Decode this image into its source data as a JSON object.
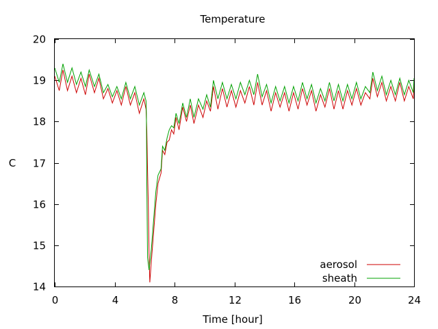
{
  "chart_data": {
    "type": "line",
    "title": "Temperature",
    "xlabel": "Time [hour]",
    "ylabel": "C",
    "xlim": [
      0,
      24
    ],
    "ylim": [
      14,
      20
    ],
    "xticks": [
      0,
      4,
      8,
      12,
      16,
      20,
      24
    ],
    "yticks": [
      14,
      15,
      16,
      17,
      18,
      19,
      20
    ],
    "grid": false,
    "legend_position": "bottom-right",
    "series": [
      {
        "name": "aerosol",
        "color": "#cc0000",
        "points": [
          [
            0.0,
            19.1
          ],
          [
            0.3,
            18.75
          ],
          [
            0.55,
            19.25
          ],
          [
            0.85,
            18.75
          ],
          [
            1.15,
            19.1
          ],
          [
            1.45,
            18.7
          ],
          [
            1.75,
            19.05
          ],
          [
            2.05,
            18.65
          ],
          [
            2.3,
            19.15
          ],
          [
            2.65,
            18.7
          ],
          [
            2.95,
            19.05
          ],
          [
            3.25,
            18.55
          ],
          [
            3.55,
            18.8
          ],
          [
            3.85,
            18.45
          ],
          [
            4.15,
            18.75
          ],
          [
            4.45,
            18.4
          ],
          [
            4.75,
            18.85
          ],
          [
            5.05,
            18.4
          ],
          [
            5.35,
            18.7
          ],
          [
            5.65,
            18.2
          ],
          [
            5.95,
            18.55
          ],
          [
            6.1,
            18.3
          ],
          [
            6.15,
            17.8
          ],
          [
            6.2,
            16.8
          ],
          [
            6.25,
            16.0
          ],
          [
            6.3,
            14.8
          ],
          [
            6.35,
            14.1
          ],
          [
            6.45,
            14.6
          ],
          [
            6.6,
            15.3
          ],
          [
            6.75,
            16.0
          ],
          [
            6.9,
            16.5
          ],
          [
            7.1,
            16.75
          ],
          [
            7.2,
            17.3
          ],
          [
            7.35,
            17.2
          ],
          [
            7.5,
            17.5
          ],
          [
            7.65,
            17.55
          ],
          [
            7.8,
            17.8
          ],
          [
            7.95,
            17.7
          ],
          [
            8.1,
            18.1
          ],
          [
            8.3,
            17.8
          ],
          [
            8.55,
            18.35
          ],
          [
            8.8,
            18.0
          ],
          [
            9.05,
            18.4
          ],
          [
            9.3,
            17.95
          ],
          [
            9.6,
            18.4
          ],
          [
            9.9,
            18.1
          ],
          [
            10.15,
            18.5
          ],
          [
            10.4,
            18.25
          ],
          [
            10.6,
            18.85
          ],
          [
            10.9,
            18.3
          ],
          [
            11.2,
            18.8
          ],
          [
            11.5,
            18.35
          ],
          [
            11.8,
            18.75
          ],
          [
            12.1,
            18.35
          ],
          [
            12.4,
            18.75
          ],
          [
            12.7,
            18.45
          ],
          [
            13.0,
            18.85
          ],
          [
            13.3,
            18.4
          ],
          [
            13.55,
            18.95
          ],
          [
            13.85,
            18.4
          ],
          [
            14.15,
            18.75
          ],
          [
            14.45,
            18.25
          ],
          [
            14.75,
            18.7
          ],
          [
            15.05,
            18.35
          ],
          [
            15.35,
            18.7
          ],
          [
            15.65,
            18.25
          ],
          [
            15.95,
            18.7
          ],
          [
            16.25,
            18.3
          ],
          [
            16.55,
            18.8
          ],
          [
            16.85,
            18.4
          ],
          [
            17.15,
            18.75
          ],
          [
            17.45,
            18.25
          ],
          [
            17.75,
            18.65
          ],
          [
            18.05,
            18.35
          ],
          [
            18.35,
            18.8
          ],
          [
            18.65,
            18.3
          ],
          [
            18.95,
            18.75
          ],
          [
            19.25,
            18.3
          ],
          [
            19.55,
            18.75
          ],
          [
            19.85,
            18.4
          ],
          [
            20.15,
            18.8
          ],
          [
            20.45,
            18.4
          ],
          [
            20.75,
            18.7
          ],
          [
            21.05,
            18.55
          ],
          [
            21.25,
            19.05
          ],
          [
            21.55,
            18.6
          ],
          [
            21.85,
            18.95
          ],
          [
            22.15,
            18.5
          ],
          [
            22.45,
            18.85
          ],
          [
            22.75,
            18.5
          ],
          [
            23.05,
            18.95
          ],
          [
            23.35,
            18.5
          ],
          [
            23.65,
            18.85
          ],
          [
            23.95,
            18.55
          ],
          [
            24.0,
            18.9
          ]
        ]
      },
      {
        "name": "sheath",
        "color": "#00a000",
        "points": [
          [
            0.0,
            19.3
          ],
          [
            0.3,
            18.95
          ],
          [
            0.55,
            19.4
          ],
          [
            0.85,
            18.95
          ],
          [
            1.15,
            19.3
          ],
          [
            1.45,
            18.9
          ],
          [
            1.75,
            19.2
          ],
          [
            2.05,
            18.85
          ],
          [
            2.3,
            19.25
          ],
          [
            2.65,
            18.85
          ],
          [
            2.95,
            19.15
          ],
          [
            3.25,
            18.7
          ],
          [
            3.55,
            18.9
          ],
          [
            3.85,
            18.6
          ],
          [
            4.15,
            18.85
          ],
          [
            4.45,
            18.55
          ],
          [
            4.75,
            18.95
          ],
          [
            5.05,
            18.55
          ],
          [
            5.35,
            18.85
          ],
          [
            5.65,
            18.4
          ],
          [
            5.95,
            18.7
          ],
          [
            6.1,
            18.5
          ],
          [
            6.12,
            18.2
          ],
          [
            6.15,
            16.5
          ],
          [
            6.2,
            14.7
          ],
          [
            6.3,
            14.4
          ],
          [
            6.45,
            14.9
          ],
          [
            6.6,
            15.6
          ],
          [
            6.75,
            16.3
          ],
          [
            6.9,
            16.7
          ],
          [
            7.1,
            16.85
          ],
          [
            7.2,
            17.4
          ],
          [
            7.35,
            17.3
          ],
          [
            7.5,
            17.6
          ],
          [
            7.65,
            17.8
          ],
          [
            7.8,
            17.9
          ],
          [
            7.95,
            17.85
          ],
          [
            8.1,
            18.2
          ],
          [
            8.3,
            17.95
          ],
          [
            8.55,
            18.45
          ],
          [
            8.8,
            18.1
          ],
          [
            9.05,
            18.55
          ],
          [
            9.3,
            18.1
          ],
          [
            9.6,
            18.55
          ],
          [
            9.9,
            18.3
          ],
          [
            10.15,
            18.65
          ],
          [
            10.4,
            18.35
          ],
          [
            10.6,
            19.0
          ],
          [
            10.9,
            18.55
          ],
          [
            11.2,
            18.95
          ],
          [
            11.5,
            18.55
          ],
          [
            11.8,
            18.9
          ],
          [
            12.1,
            18.55
          ],
          [
            12.4,
            18.95
          ],
          [
            12.7,
            18.65
          ],
          [
            13.0,
            19.0
          ],
          [
            13.3,
            18.65
          ],
          [
            13.55,
            19.15
          ],
          [
            13.85,
            18.6
          ],
          [
            14.15,
            18.9
          ],
          [
            14.45,
            18.45
          ],
          [
            14.75,
            18.85
          ],
          [
            15.05,
            18.5
          ],
          [
            15.35,
            18.85
          ],
          [
            15.65,
            18.45
          ],
          [
            15.95,
            18.85
          ],
          [
            16.25,
            18.5
          ],
          [
            16.55,
            18.95
          ],
          [
            16.85,
            18.55
          ],
          [
            17.15,
            18.9
          ],
          [
            17.45,
            18.45
          ],
          [
            17.75,
            18.8
          ],
          [
            18.05,
            18.5
          ],
          [
            18.35,
            18.95
          ],
          [
            18.65,
            18.5
          ],
          [
            18.95,
            18.9
          ],
          [
            19.25,
            18.5
          ],
          [
            19.55,
            18.9
          ],
          [
            19.85,
            18.55
          ],
          [
            20.15,
            18.95
          ],
          [
            20.45,
            18.55
          ],
          [
            20.75,
            18.85
          ],
          [
            21.05,
            18.7
          ],
          [
            21.25,
            19.2
          ],
          [
            21.55,
            18.75
          ],
          [
            21.85,
            19.1
          ],
          [
            22.15,
            18.65
          ],
          [
            22.45,
            19.0
          ],
          [
            22.75,
            18.65
          ],
          [
            23.05,
            19.05
          ],
          [
            23.35,
            18.65
          ],
          [
            23.65,
            19.0
          ],
          [
            23.95,
            18.7
          ],
          [
            24.0,
            19.05
          ]
        ]
      }
    ]
  }
}
